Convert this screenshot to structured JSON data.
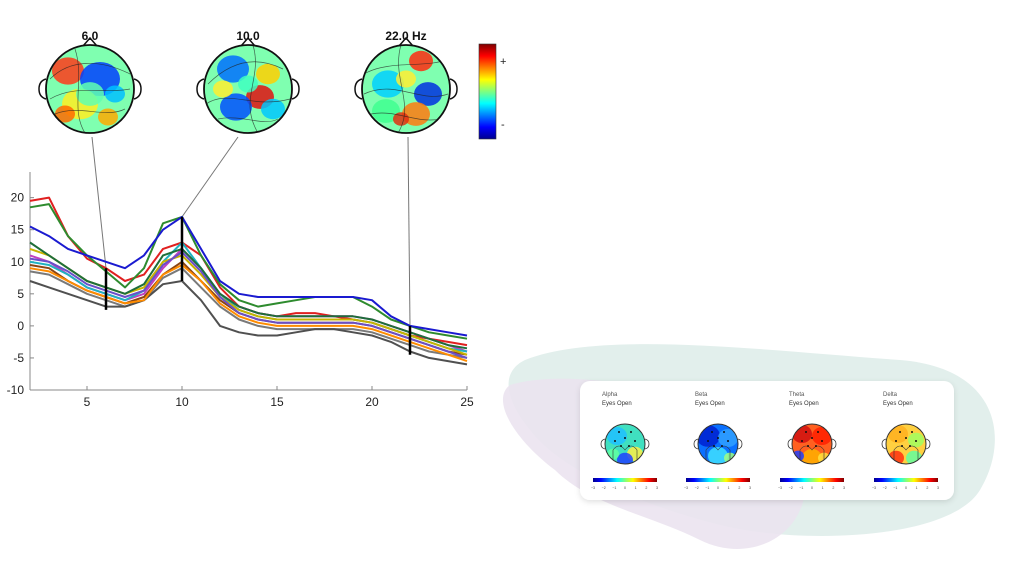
{
  "topomaps": [
    {
      "label": "6.0",
      "freq": 6
    },
    {
      "label": "10.0",
      "freq": 10
    },
    {
      "label": "22.0 Hz",
      "freq": 22
    }
  ],
  "colorbar": {
    "plus": "+",
    "minus": "-"
  },
  "chart_data": {
    "type": "line",
    "title": "",
    "xlabel": "",
    "ylabel": "",
    "xlim": [
      2,
      25
    ],
    "ylim": [
      -10,
      24
    ],
    "xticks": [
      5,
      10,
      15,
      20,
      25
    ],
    "yticks": [
      -10,
      -5,
      0,
      5,
      10,
      15,
      20
    ],
    "x": [
      2,
      3,
      4,
      5,
      6,
      7,
      8,
      9,
      10,
      11,
      12,
      13,
      14,
      15,
      16,
      17,
      18,
      19,
      20,
      21,
      22,
      23,
      24,
      25
    ],
    "series": [
      {
        "color": "#e02020",
        "values": [
          19.5,
          20,
          14,
          10.5,
          9,
          7,
          8,
          12,
          13,
          11,
          6,
          3,
          2,
          1.5,
          2,
          2,
          1.5,
          1,
          0.5,
          -0.5,
          -1.5,
          -2,
          -2.5,
          -3
        ]
      },
      {
        "color": "#2e8b2e",
        "values": [
          18.5,
          19,
          14,
          11,
          8.5,
          6,
          9,
          16,
          17,
          11,
          6.5,
          4,
          3,
          3.5,
          4,
          4.5,
          4.5,
          4.5,
          3,
          1,
          0,
          -1,
          -1.5,
          -2
        ]
      },
      {
        "color": "#1a1ad0",
        "values": [
          15.5,
          14,
          12,
          11,
          10,
          9,
          11,
          15,
          17,
          12,
          7,
          5,
          4.5,
          4.5,
          4.5,
          4.5,
          4.5,
          4.5,
          4,
          1.5,
          0,
          -0.5,
          -1,
          -1.5
        ]
      },
      {
        "color": "#c040c0",
        "values": [
          11,
          10,
          8,
          6,
          5,
          4,
          5,
          9,
          12,
          9,
          5,
          3,
          2,
          1.5,
          1.5,
          1.5,
          1.5,
          1.5,
          1,
          0,
          -1,
          -2,
          -3,
          -4
        ]
      },
      {
        "color": "#20b2c0",
        "values": [
          10,
          9.5,
          8,
          6,
          5,
          4,
          5.5,
          10,
          13,
          9,
          5,
          2.5,
          1.5,
          1,
          1,
          1,
          1,
          1,
          0.5,
          -0.5,
          -1.5,
          -2.5,
          -3.5,
          -4
        ]
      },
      {
        "color": "#8b4513",
        "values": [
          9.5,
          9,
          7,
          5.5,
          4.5,
          3.5,
          4.5,
          8,
          10,
          7,
          4,
          2,
          1,
          0.5,
          0.5,
          0.5,
          0.5,
          0.5,
          0,
          -1,
          -2,
          -3,
          -4,
          -4.5
        ]
      },
      {
        "color": "#7a7a7a",
        "values": [
          8.5,
          8,
          6.5,
          5,
          4,
          3,
          4,
          7.5,
          9,
          6,
          3,
          1,
          0,
          -0.5,
          -0.5,
          -0.5,
          -0.5,
          -0.5,
          -1,
          -2,
          -3,
          -4,
          -4.5,
          -5
        ]
      },
      {
        "color": "#505050",
        "values": [
          7,
          6,
          5,
          4,
          3,
          3,
          4,
          6.5,
          7,
          4,
          0,
          -1,
          -1.5,
          -1.5,
          -1,
          -0.5,
          -0.5,
          -1,
          -1.5,
          -2.5,
          -4,
          -5,
          -5.5,
          -6
        ]
      },
      {
        "color": "#c8b400",
        "values": [
          12,
          11,
          9,
          7,
          6,
          5,
          6,
          10,
          11,
          8,
          4.5,
          2.5,
          1.5,
          1,
          1,
          1,
          1,
          1,
          0.5,
          -0.5,
          -1.5,
          -2.5,
          -3.5,
          -4.5
        ]
      },
      {
        "color": "#6a4fc8",
        "values": [
          10.5,
          10,
          8.5,
          6.5,
          5.5,
          4.5,
          5.5,
          9.5,
          11.5,
          8.5,
          4.5,
          2,
          1,
          0.5,
          0.5,
          0.5,
          0.5,
          0.5,
          0,
          -1,
          -2,
          -3,
          -4,
          -5
        ]
      },
      {
        "color": "#ff8c00",
        "values": [
          9,
          8.5,
          7,
          5.5,
          4.5,
          3.5,
          4,
          8,
          9.5,
          7,
          3.5,
          1.5,
          0.5,
          0,
          0,
          0,
          0,
          0,
          -0.5,
          -1.5,
          -2.5,
          -3.5,
          -4.5,
          -5.5
        ]
      },
      {
        "color": "#1e6e3a",
        "values": [
          13,
          11,
          9,
          7,
          6,
          5,
          6.5,
          11,
          12,
          9,
          5,
          3,
          2,
          1.5,
          1.5,
          1.5,
          1.5,
          1.5,
          1,
          0,
          -1,
          -2,
          -3,
          -3.5
        ]
      }
    ],
    "markers": [
      {
        "x": 6,
        "ymin": 2.5,
        "ymax": 9
      },
      {
        "x": 10,
        "ymin": 7,
        "ymax": 17
      },
      {
        "x": 22,
        "ymin": -4.5,
        "ymax": 0
      }
    ],
    "grid": false
  },
  "card": {
    "maps": [
      {
        "band": "Alpha",
        "condition": "Eyes Open",
        "scheme": "alpha"
      },
      {
        "band": "Beta",
        "condition": "Eyes Open",
        "scheme": "beta"
      },
      {
        "band": "Theta",
        "condition": "Eyes Open",
        "scheme": "theta"
      },
      {
        "band": "Delta",
        "condition": "Eyes Open",
        "scheme": "delta"
      }
    ],
    "scale_ticks": [
      "−3",
      "−2",
      "−1",
      "0",
      "1",
      "2",
      "3"
    ]
  },
  "colors": {
    "blob_teal": "#e2efec",
    "blob_purple": "#ebe3ef",
    "card_bg": "#ffffff"
  }
}
